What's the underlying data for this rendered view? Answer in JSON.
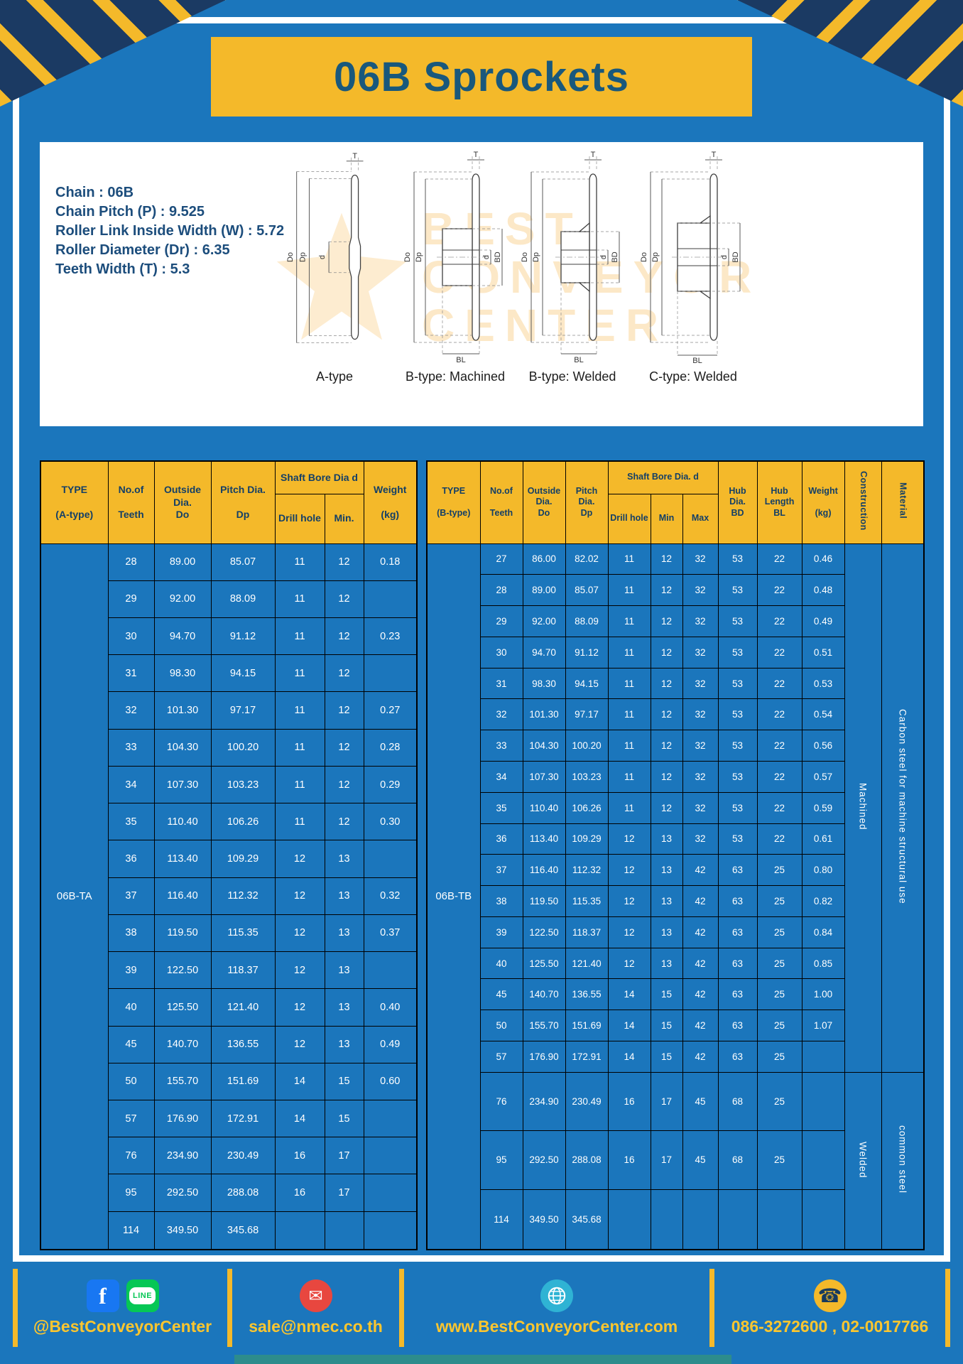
{
  "title": "06B Sprockets",
  "palette": {
    "blue": "#1b76bc",
    "yellow": "#f4b92a",
    "navy": "#1b3a63",
    "header_text": "#143f66",
    "footer_text": "#fdc62e",
    "teal": "#2d8c8c"
  },
  "specs": {
    "lines": [
      "Chain : 06B",
      "Chain Pitch (P) : 9.525",
      "Roller Link Inside Width (W) : 5.72",
      "Roller Diameter (Dr) : 6.35",
      "Teeth Width (T) : 5.3"
    ]
  },
  "watermark": {
    "line1": "BEST",
    "line2": "CONVEYOR",
    "line3": "CENTER"
  },
  "diagrams": [
    {
      "caption": "A-type",
      "labels": {
        "T": "T",
        "Do": "Do",
        "Dp": "Dp",
        "d": "d"
      }
    },
    {
      "caption": "B-type: Machined",
      "labels": {
        "T": "T",
        "Do": "Do",
        "Dp": "Dp",
        "d": "d",
        "BD": "BD",
        "BL": "BL"
      }
    },
    {
      "caption": "B-type: Welded",
      "labels": {
        "T": "T",
        "Do": "Do",
        "Dp": "Dp",
        "d": "d",
        "BD": "BD",
        "BL": "BL"
      }
    },
    {
      "caption": "C-type: Welded",
      "labels": {
        "T": "T",
        "Do": "Do",
        "Dp": "Dp",
        "d": "d",
        "BD": "BD",
        "BL": "BL"
      }
    }
  ],
  "table_a": {
    "type_label": "06B-TA",
    "headers": {
      "type": "TYPE\n\n(A-type)",
      "teeth": "No.of\n\nTeeth",
      "outside": "Outside\nDia.\nDo",
      "pitch": "Pitch Dia.\n\nDp",
      "shaft_bore": "Shaft Bore Dia d",
      "drill": "Drill hole",
      "min": "Min.",
      "weight": "Weight\n\n(kg)"
    },
    "columns": [
      "No.of Teeth",
      "Outside Dia. Do",
      "Pitch Dia. Dp",
      "Drill hole",
      "Min.",
      "Weight (kg)"
    ],
    "rows": [
      [
        "28",
        "89.00",
        "85.07",
        "11",
        "12",
        "0.18"
      ],
      [
        "29",
        "92.00",
        "88.09",
        "11",
        "12",
        ""
      ],
      [
        "30",
        "94.70",
        "91.12",
        "11",
        "12",
        "0.23"
      ],
      [
        "31",
        "98.30",
        "94.15",
        "11",
        "12",
        ""
      ],
      [
        "32",
        "101.30",
        "97.17",
        "11",
        "12",
        "0.27"
      ],
      [
        "33",
        "104.30",
        "100.20",
        "11",
        "12",
        "0.28"
      ],
      [
        "34",
        "107.30",
        "103.23",
        "11",
        "12",
        "0.29"
      ],
      [
        "35",
        "110.40",
        "106.26",
        "11",
        "12",
        "0.30"
      ],
      [
        "36",
        "113.40",
        "109.29",
        "12",
        "13",
        ""
      ],
      [
        "37",
        "116.40",
        "112.32",
        "12",
        "13",
        "0.32"
      ],
      [
        "38",
        "119.50",
        "115.35",
        "12",
        "13",
        "0.37"
      ],
      [
        "39",
        "122.50",
        "118.37",
        "12",
        "13",
        ""
      ],
      [
        "40",
        "125.50",
        "121.40",
        "12",
        "13",
        "0.40"
      ],
      [
        "45",
        "140.70",
        "136.55",
        "12",
        "13",
        "0.49"
      ],
      [
        "50",
        "155.70",
        "151.69",
        "14",
        "15",
        "0.60"
      ],
      [
        "57",
        "176.90",
        "172.91",
        "14",
        "15",
        ""
      ],
      [
        "76",
        "234.90",
        "230.49",
        "16",
        "17",
        ""
      ],
      [
        "95",
        "292.50",
        "288.08",
        "16",
        "17",
        ""
      ],
      [
        "114",
        "349.50",
        "345.68",
        "",
        "",
        ""
      ]
    ]
  },
  "table_b": {
    "type_label": "06B-TB",
    "headers": {
      "type": "TYPE\n\n(B-type)",
      "teeth": "No.of\n\nTeeth",
      "outside": "Outside\nDia.\nDo",
      "pitch": "Pitch\nDia.\nDp",
      "shaft_bore": "Shaft Bore Dia. d",
      "drill": "Drill hole",
      "min": "Min",
      "max": "Max",
      "hub_dia": "Hub\nDia.\nBD",
      "hub_len": "Hub\nLength\nBL",
      "weight": "Weight\n\n(kg)",
      "construction": "Construction",
      "material": "Material"
    },
    "columns": [
      "No.of Teeth",
      "Outside Dia. Do",
      "Pitch Dia. Dp",
      "Drill hole",
      "Min",
      "Max",
      "Hub Dia. BD",
      "Hub Length BL",
      "Weight (kg)"
    ],
    "rows": [
      [
        "27",
        "86.00",
        "82.02",
        "11",
        "12",
        "32",
        "53",
        "22",
        "0.46"
      ],
      [
        "28",
        "89.00",
        "85.07",
        "11",
        "12",
        "32",
        "53",
        "22",
        "0.48"
      ],
      [
        "29",
        "92.00",
        "88.09",
        "11",
        "12",
        "32",
        "53",
        "22",
        "0.49"
      ],
      [
        "30",
        "94.70",
        "91.12",
        "11",
        "12",
        "32",
        "53",
        "22",
        "0.51"
      ],
      [
        "31",
        "98.30",
        "94.15",
        "11",
        "12",
        "32",
        "53",
        "22",
        "0.53"
      ],
      [
        "32",
        "101.30",
        "97.17",
        "11",
        "12",
        "32",
        "53",
        "22",
        "0.54"
      ],
      [
        "33",
        "104.30",
        "100.20",
        "11",
        "12",
        "32",
        "53",
        "22",
        "0.56"
      ],
      [
        "34",
        "107.30",
        "103.23",
        "11",
        "12",
        "32",
        "53",
        "22",
        "0.57"
      ],
      [
        "35",
        "110.40",
        "106.26",
        "11",
        "12",
        "32",
        "53",
        "22",
        "0.59"
      ],
      [
        "36",
        "113.40",
        "109.29",
        "12",
        "13",
        "32",
        "53",
        "22",
        "0.61"
      ],
      [
        "37",
        "116.40",
        "112.32",
        "12",
        "13",
        "42",
        "63",
        "25",
        "0.80"
      ],
      [
        "38",
        "119.50",
        "115.35",
        "12",
        "13",
        "42",
        "63",
        "25",
        "0.82"
      ],
      [
        "39",
        "122.50",
        "118.37",
        "12",
        "13",
        "42",
        "63",
        "25",
        "0.84"
      ],
      [
        "40",
        "125.50",
        "121.40",
        "12",
        "13",
        "42",
        "63",
        "25",
        "0.85"
      ],
      [
        "45",
        "140.70",
        "136.55",
        "14",
        "15",
        "42",
        "63",
        "25",
        "1.00"
      ],
      [
        "50",
        "155.70",
        "151.69",
        "14",
        "15",
        "42",
        "63",
        "25",
        "1.07"
      ],
      [
        "57",
        "176.90",
        "172.91",
        "14",
        "15",
        "42",
        "63",
        "25",
        ""
      ],
      [
        "76",
        "234.90",
        "230.49",
        "16",
        "17",
        "45",
        "68",
        "25",
        ""
      ],
      [
        "95",
        "292.50",
        "288.08",
        "16",
        "17",
        "45",
        "68",
        "25",
        ""
      ],
      [
        "114",
        "349.50",
        "345.68",
        "",
        "",
        "",
        "",
        "",
        ""
      ]
    ],
    "construction_spans": [
      {
        "label": "Machined",
        "rows": 17
      },
      {
        "label": "Welded",
        "rows": 3
      }
    ],
    "material_spans": [
      {
        "label": "Carbon steel for machine structural use",
        "rows": 17
      },
      {
        "label": "common steel",
        "rows": 3
      }
    ]
  },
  "footer": {
    "facebook_glyph": "f",
    "line_text": "LINE",
    "social_label": "@BestConveyorCenter",
    "mail_glyph": "✉",
    "email": "sale@nmec.co.th",
    "website": "www.BestConveyorCenter.com",
    "phone_glyph": "☎",
    "phone": "086-3272600 , 02-0017766"
  }
}
